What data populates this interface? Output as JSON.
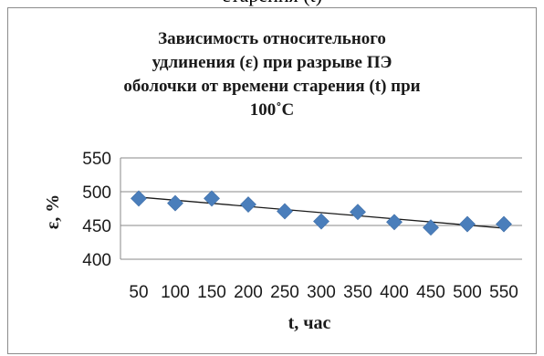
{
  "top_fragment": "старения (t)",
  "chart_data": {
    "type": "scatter",
    "title_lines": [
      "Зависимость относительного",
      "удлинения (ε) при разрыве ПЭ",
      "оболочки от времени старения (t) при",
      "100˚С"
    ],
    "xlabel": "t, час",
    "ylabel": "ε, %",
    "x_ticks": [
      "50",
      "100",
      "150",
      "200",
      "250",
      "300",
      "350",
      "400",
      "450",
      "500",
      "550"
    ],
    "y_ticks": [
      "400",
      "450",
      "500",
      "550"
    ],
    "xlim": [
      25,
      575
    ],
    "ylim": [
      400,
      550
    ],
    "grid": true,
    "marker_color": "#4a7ebb",
    "points": [
      {
        "x": 50,
        "y": 490
      },
      {
        "x": 100,
        "y": 483
      },
      {
        "x": 150,
        "y": 490
      },
      {
        "x": 200,
        "y": 481
      },
      {
        "x": 250,
        "y": 471
      },
      {
        "x": 300,
        "y": 456
      },
      {
        "x": 350,
        "y": 470
      },
      {
        "x": 400,
        "y": 455
      },
      {
        "x": 450,
        "y": 447
      },
      {
        "x": 500,
        "y": 452
      },
      {
        "x": 550,
        "y": 452
      }
    ],
    "trendline": {
      "x": [
        50,
        550
      ],
      "y": [
        492,
        446
      ]
    }
  }
}
